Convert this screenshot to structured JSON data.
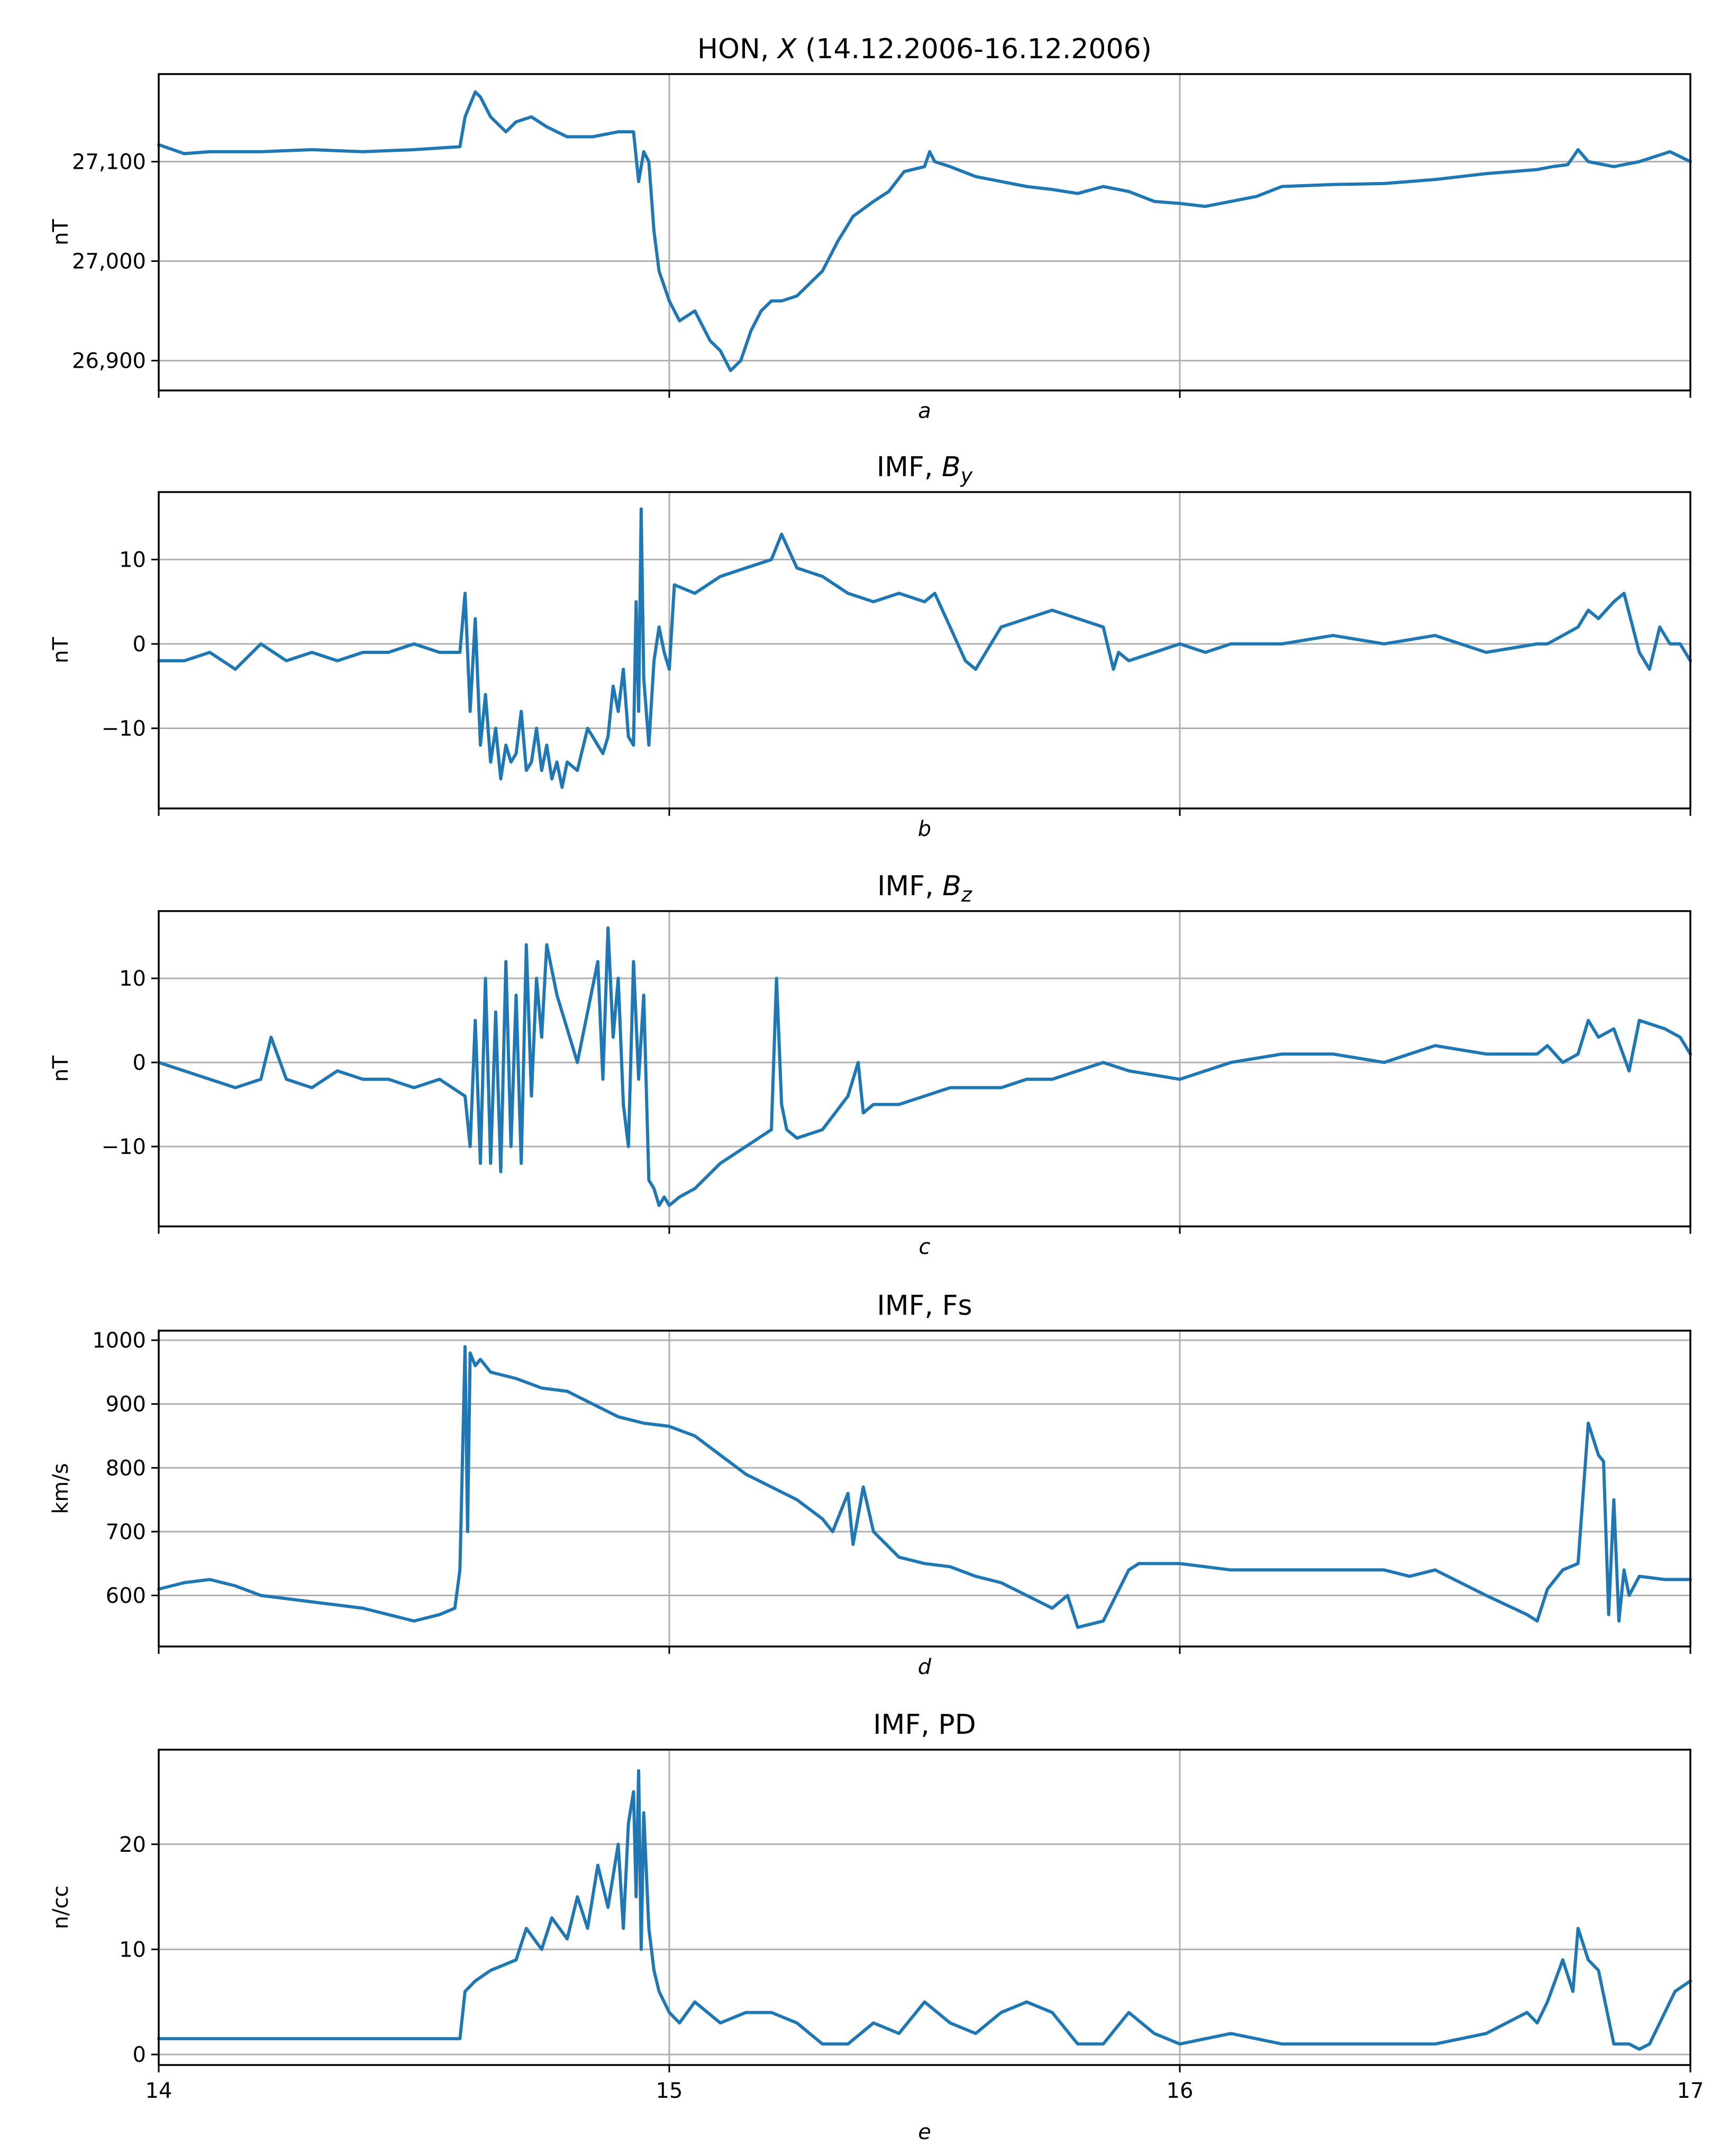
{
  "figure_title": "HON, X (14.12.2006-16.12.2006)",
  "colors": {
    "line": "#1f77b4",
    "grid": "#b0b0b0",
    "axes": "#000000"
  },
  "chart_data": [
    {
      "type": "line",
      "title": "HON, X (14.12.2006-16.12.2006)",
      "title_prefix": "HON, ",
      "title_var": "X",
      "title_suffix": " (14.12.2006-16.12.2006)",
      "xlabel": "a",
      "ylabel": "nT",
      "xlim": [
        14,
        17
      ],
      "ylim": [
        26870,
        27188
      ],
      "yticks": [
        26900,
        27000,
        27100
      ],
      "yticklabels": [
        "26,900",
        "27,000",
        "27,100"
      ],
      "xticks": [
        14,
        15,
        16,
        17
      ],
      "xticklabels": [],
      "grid": true,
      "series": [
        {
          "name": "X",
          "x": [
            14.0,
            14.05,
            14.1,
            14.2,
            14.3,
            14.4,
            14.5,
            14.59,
            14.6,
            14.62,
            14.63,
            14.65,
            14.68,
            14.7,
            14.73,
            14.76,
            14.8,
            14.85,
            14.9,
            14.93,
            14.94,
            14.95,
            14.96,
            14.97,
            14.98,
            15.0,
            15.02,
            15.05,
            15.08,
            15.1,
            15.12,
            15.14,
            15.16,
            15.18,
            15.2,
            15.22,
            15.25,
            15.28,
            15.3,
            15.33,
            15.36,
            15.4,
            15.43,
            15.46,
            15.5,
            15.51,
            15.52,
            15.55,
            15.6,
            15.65,
            15.7,
            15.75,
            15.8,
            15.85,
            15.9,
            15.95,
            16.0,
            16.05,
            16.1,
            16.15,
            16.2,
            16.3,
            16.4,
            16.5,
            16.6,
            16.7,
            16.73,
            16.76,
            16.78,
            16.8,
            16.85,
            16.9,
            16.93,
            16.96,
            17.0
          ],
          "y": [
            27117,
            27108,
            27110,
            27110,
            27112,
            27110,
            27112,
            27115,
            27145,
            27170,
            27165,
            27145,
            27130,
            27140,
            27145,
            27135,
            27125,
            27125,
            27130,
            27130,
            27080,
            27110,
            27100,
            27030,
            26990,
            26960,
            26940,
            26950,
            26920,
            26910,
            26890,
            26900,
            26930,
            26950,
            26960,
            26960,
            26965,
            26980,
            26990,
            27020,
            27045,
            27060,
            27070,
            27090,
            27095,
            27110,
            27100,
            27095,
            27085,
            27080,
            27075,
            27072,
            27068,
            27075,
            27070,
            27060,
            27058,
            27055,
            27060,
            27065,
            27075,
            27077,
            27078,
            27082,
            27088,
            27092,
            27095,
            27097,
            27112,
            27100,
            27095,
            27100,
            27105,
            27110,
            27100
          ]
        }
      ]
    },
    {
      "type": "line",
      "title": "IMF, By",
      "title_prefix": "IMF, ",
      "title_var": "B",
      "title_sub": "y",
      "xlabel": "b",
      "ylabel": "nT",
      "xlim": [
        14,
        17
      ],
      "ylim": [
        -19.5,
        18
      ],
      "yticks": [
        -10,
        0,
        10
      ],
      "yticklabels": [
        "−10",
        "0",
        "10"
      ],
      "xticks": [
        14,
        15,
        16,
        17
      ],
      "xticklabels": [],
      "grid": true,
      "series": [
        {
          "name": "By",
          "x": [
            14.0,
            14.05,
            14.1,
            14.15,
            14.2,
            14.25,
            14.3,
            14.35,
            14.4,
            14.45,
            14.5,
            14.55,
            14.59,
            14.6,
            14.61,
            14.62,
            14.63,
            14.64,
            14.65,
            14.66,
            14.67,
            14.68,
            14.69,
            14.7,
            14.71,
            14.72,
            14.73,
            14.74,
            14.75,
            14.76,
            14.77,
            14.78,
            14.79,
            14.8,
            14.82,
            14.84,
            14.86,
            14.87,
            14.88,
            14.89,
            14.9,
            14.91,
            14.92,
            14.93,
            14.935,
            14.94,
            14.945,
            14.95,
            14.96,
            14.97,
            14.98,
            14.99,
            15.0,
            15.01,
            15.05,
            15.1,
            15.15,
            15.2,
            15.22,
            15.25,
            15.3,
            15.35,
            15.4,
            15.45,
            15.5,
            15.52,
            15.55,
            15.58,
            15.6,
            15.62,
            15.65,
            15.7,
            15.75,
            15.8,
            15.85,
            15.87,
            15.88,
            15.9,
            15.95,
            16.0,
            16.05,
            16.1,
            16.2,
            16.3,
            16.4,
            16.5,
            16.6,
            16.7,
            16.72,
            16.75,
            16.78,
            16.8,
            16.82,
            16.85,
            16.87,
            16.9,
            16.92,
            16.94,
            16.96,
            16.98,
            17.0
          ],
          "y": [
            -2,
            -2,
            -1,
            -3,
            0,
            -2,
            -1,
            -2,
            -1,
            -1,
            0,
            -1,
            -1,
            6,
            -8,
            3,
            -12,
            -6,
            -14,
            -10,
            -16,
            -12,
            -14,
            -13,
            -8,
            -15,
            -14,
            -10,
            -15,
            -12,
            -16,
            -14,
            -17,
            -14,
            -15,
            -10,
            -12,
            -13,
            -11,
            -5,
            -8,
            -3,
            -11,
            -12,
            5,
            -8,
            16,
            -4,
            -12,
            -2,
            2,
            -1,
            -3,
            7,
            6,
            8,
            9,
            10,
            13,
            9,
            8,
            6,
            5,
            6,
            5,
            6,
            2,
            -2,
            -3,
            -1,
            2,
            3,
            4,
            3,
            2,
            -3,
            -1,
            -2,
            -1,
            0,
            -1,
            0,
            0,
            1,
            0,
            1,
            -1,
            0,
            0,
            1,
            2,
            4,
            3,
            5,
            6,
            -1,
            -3,
            2,
            0,
            0,
            -2
          ]
        }
      ]
    },
    {
      "type": "line",
      "title": "IMF, Bz",
      "title_prefix": "IMF, ",
      "title_var": "B",
      "title_sub": "z",
      "xlabel": "c",
      "ylabel": "nT",
      "xlim": [
        14,
        17
      ],
      "ylim": [
        -19.5,
        18
      ],
      "yticks": [
        -10,
        0,
        10
      ],
      "yticklabels": [
        "−10",
        "0",
        "10"
      ],
      "xticks": [
        14,
        15,
        16,
        17
      ],
      "xticklabels": [],
      "grid": true,
      "series": [
        {
          "name": "Bz",
          "x": [
            14.0,
            14.05,
            14.1,
            14.15,
            14.2,
            14.22,
            14.25,
            14.3,
            14.35,
            14.4,
            14.45,
            14.5,
            14.55,
            14.6,
            14.61,
            14.62,
            14.63,
            14.64,
            14.65,
            14.66,
            14.67,
            14.68,
            14.69,
            14.7,
            14.71,
            14.72,
            14.73,
            14.74,
            14.75,
            14.76,
            14.78,
            14.8,
            14.82,
            14.84,
            14.86,
            14.87,
            14.88,
            14.89,
            14.9,
            14.91,
            14.92,
            14.93,
            14.94,
            14.95,
            14.96,
            14.97,
            14.98,
            14.99,
            15.0,
            15.02,
            15.05,
            15.1,
            15.15,
            15.2,
            15.21,
            15.22,
            15.23,
            15.25,
            15.3,
            15.35,
            15.37,
            15.38,
            15.4,
            15.45,
            15.5,
            15.55,
            15.6,
            15.65,
            15.7,
            15.75,
            15.8,
            15.85,
            15.9,
            16.0,
            16.1,
            16.2,
            16.3,
            16.4,
            16.5,
            16.6,
            16.7,
            16.72,
            16.75,
            16.78,
            16.8,
            16.82,
            16.85,
            16.88,
            16.9,
            16.95,
            16.98,
            17.0
          ],
          "y": [
            0,
            -1,
            -2,
            -3,
            -2,
            3,
            -2,
            -3,
            -1,
            -2,
            -2,
            -3,
            -2,
            -4,
            -10,
            5,
            -12,
            10,
            -12,
            6,
            -13,
            12,
            -10,
            8,
            -12,
            14,
            -4,
            10,
            3,
            14,
            8,
            4,
            0,
            6,
            12,
            -2,
            16,
            3,
            10,
            -5,
            -10,
            12,
            -2,
            8,
            -14,
            -15,
            -17,
            -16,
            -17,
            -16,
            -15,
            -12,
            -10,
            -8,
            10,
            -5,
            -8,
            -9,
            -8,
            -4,
            0,
            -6,
            -5,
            -5,
            -4,
            -3,
            -3,
            -3,
            -2,
            -2,
            -1,
            0,
            -1,
            -2,
            0,
            1,
            1,
            0,
            2,
            1,
            1,
            2,
            0,
            1,
            5,
            3,
            4,
            -1,
            5,
            4,
            3,
            1
          ]
        }
      ]
    },
    {
      "type": "line",
      "title": "IMF, Fs",
      "xlabel": "d",
      "ylabel": "km/s",
      "xlim": [
        14,
        17
      ],
      "ylim": [
        520,
        1015
      ],
      "yticks": [
        600,
        700,
        800,
        900,
        1000
      ],
      "yticklabels": [
        "600",
        "700",
        "800",
        "900",
        "1000"
      ],
      "xticks": [
        14,
        15,
        16,
        17
      ],
      "xticklabels": [],
      "grid": true,
      "series": [
        {
          "name": "Fs",
          "x": [
            14.0,
            14.05,
            14.1,
            14.15,
            14.2,
            14.3,
            14.4,
            14.45,
            14.5,
            14.55,
            14.58,
            14.59,
            14.6,
            14.605,
            14.61,
            14.62,
            14.63,
            14.65,
            14.7,
            14.75,
            14.8,
            14.85,
            14.9,
            14.95,
            15.0,
            15.05,
            15.1,
            15.15,
            15.2,
            15.25,
            15.3,
            15.32,
            15.35,
            15.36,
            15.38,
            15.4,
            15.45,
            15.5,
            15.55,
            15.6,
            15.65,
            15.7,
            15.75,
            15.78,
            15.8,
            15.85,
            15.9,
            15.92,
            16.0,
            16.1,
            16.2,
            16.3,
            16.4,
            16.45,
            16.5,
            16.6,
            16.68,
            16.7,
            16.72,
            16.75,
            16.78,
            16.8,
            16.82,
            16.83,
            16.84,
            16.85,
            16.86,
            16.87,
            16.88,
            16.9,
            16.95,
            17.0
          ],
          "y": [
            610,
            620,
            625,
            615,
            600,
            590,
            580,
            570,
            560,
            570,
            580,
            640,
            990,
            700,
            980,
            960,
            970,
            950,
            940,
            925,
            920,
            900,
            880,
            870,
            865,
            850,
            820,
            790,
            770,
            750,
            720,
            700,
            760,
            680,
            770,
            700,
            660,
            650,
            645,
            630,
            620,
            600,
            580,
            600,
            550,
            560,
            640,
            650,
            650,
            640,
            640,
            640,
            640,
            630,
            640,
            600,
            570,
            560,
            610,
            640,
            650,
            870,
            820,
            810,
            570,
            750,
            560,
            640,
            600,
            630,
            625,
            625
          ]
        }
      ]
    },
    {
      "type": "line",
      "title": "IMF, PD",
      "xlabel": "e",
      "ylabel": "n/cc",
      "xlim": [
        14,
        17
      ],
      "ylim": [
        -1,
        29
      ],
      "yticks": [
        0,
        10,
        20
      ],
      "yticklabels": [
        "0",
        "10",
        "20"
      ],
      "xticks": [
        14,
        15,
        16,
        17
      ],
      "xticklabels": [
        "14",
        "15",
        "16",
        "17"
      ],
      "grid": true,
      "series": [
        {
          "name": "PD",
          "x": [
            14.0,
            14.1,
            14.2,
            14.3,
            14.4,
            14.5,
            14.58,
            14.59,
            14.6,
            14.62,
            14.65,
            14.7,
            14.72,
            14.75,
            14.77,
            14.8,
            14.82,
            14.84,
            14.86,
            14.88,
            14.9,
            14.91,
            14.92,
            14.93,
            14.935,
            14.94,
            14.945,
            14.95,
            14.96,
            14.97,
            14.98,
            15.0,
            15.02,
            15.05,
            15.1,
            15.15,
            15.2,
            15.25,
            15.3,
            15.35,
            15.4,
            15.45,
            15.5,
            15.55,
            15.6,
            15.65,
            15.7,
            15.75,
            15.8,
            15.85,
            15.9,
            15.95,
            16.0,
            16.1,
            16.2,
            16.3,
            16.4,
            16.5,
            16.6,
            16.68,
            16.7,
            16.72,
            16.75,
            16.77,
            16.78,
            16.8,
            16.82,
            16.85,
            16.88,
            16.9,
            16.92,
            16.95,
            16.97,
            17.0
          ],
          "y": [
            1.5,
            1.5,
            1.5,
            1.5,
            1.5,
            1.5,
            1.5,
            1.5,
            6,
            7,
            8,
            9,
            12,
            10,
            13,
            11,
            15,
            12,
            18,
            14,
            20,
            12,
            22,
            25,
            15,
            27,
            10,
            23,
            12,
            8,
            6,
            4,
            3,
            5,
            3,
            4,
            4,
            3,
            1,
            1,
            3,
            2,
            5,
            3,
            2,
            4,
            5,
            4,
            1,
            1,
            4,
            2,
            1,
            2,
            1,
            1,
            1,
            1,
            2,
            4,
            3,
            5,
            9,
            6,
            12,
            9,
            8,
            1,
            1,
            0.5,
            1,
            4,
            6,
            7
          ]
        }
      ]
    }
  ]
}
